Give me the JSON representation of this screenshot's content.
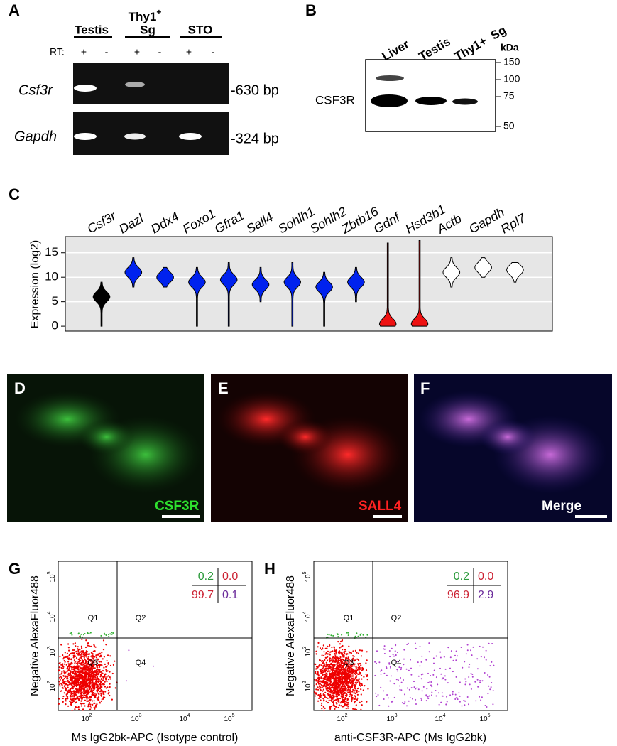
{
  "panel_a": {
    "label": "A",
    "headers": [
      "Testis",
      "Thy1",
      "Sg",
      "STO"
    ],
    "header_sup": "+",
    "rt_label": "RT:",
    "rt_marks": [
      "+",
      "-",
      "+",
      "-",
      "+",
      "-"
    ],
    "genes": [
      "Csf3r",
      "Gapdh"
    ],
    "sizes": [
      "-630 bp",
      "-324 bp"
    ]
  },
  "panel_b": {
    "label": "B",
    "lanes": [
      "Liver",
      "Testis",
      "Thy1+  Sg"
    ],
    "unit": "kDa",
    "markers": [
      "150",
      "100",
      "75",
      "50"
    ],
    "protein": "CSF3R"
  },
  "panel_c": {
    "label": "C",
    "y_label": "Expression (log2)",
    "ylim": [
      -1,
      18.3
    ],
    "yticks": [
      0,
      5,
      10,
      15
    ],
    "genes": [
      {
        "name": "Csf3r",
        "color": "#000000",
        "median": 6,
        "min": 0,
        "max": 9
      },
      {
        "name": "Dazl",
        "color": "#0022ee",
        "median": 11,
        "min": 8,
        "max": 14
      },
      {
        "name": "Ddx4",
        "color": "#0022ee",
        "median": 10,
        "min": 8,
        "max": 12
      },
      {
        "name": "Foxo1",
        "color": "#0022ee",
        "median": 9,
        "min": 0,
        "max": 12
      },
      {
        "name": "Gfra1",
        "color": "#0022ee",
        "median": 9.5,
        "min": 0,
        "max": 13
      },
      {
        "name": "Sall4",
        "color": "#0022ee",
        "median": 8.5,
        "min": 5,
        "max": 12
      },
      {
        "name": "Sohlh1",
        "color": "#0022ee",
        "median": 9,
        "min": 0,
        "max": 13
      },
      {
        "name": "Sohlh2",
        "color": "#0022ee",
        "median": 8,
        "min": 0,
        "max": 11
      },
      {
        "name": "Zbtb16",
        "color": "#0022ee",
        "median": 9,
        "min": 5,
        "max": 12
      },
      {
        "name": "Gdnf",
        "color": "#ee1111",
        "median": 0.5,
        "min": 0,
        "max": 17
      },
      {
        "name": "Hsd3b1",
        "color": "#ee1111",
        "median": 0.5,
        "min": 0,
        "max": 17.5
      },
      {
        "name": "Actb",
        "color": "#ffffff",
        "median": 11,
        "min": 8,
        "max": 14
      },
      {
        "name": "Gapdh",
        "color": "#ffffff",
        "median": 12,
        "min": 10,
        "max": 14
      },
      {
        "name": "Rpl7",
        "color": "#ffffff",
        "median": 11.5,
        "min": 9,
        "max": 13
      }
    ]
  },
  "panel_d": {
    "label": "D",
    "stain": "CSF3R"
  },
  "panel_e": {
    "label": "E",
    "stain": "SALL4"
  },
  "panel_f": {
    "label": "F",
    "stain": "Merge"
  },
  "panel_g": {
    "label": "G",
    "x_label": "Ms IgG2bk-APC (Isotype control)",
    "y_label": "Negative AlexaFluor488",
    "quadrants": [
      "Q1",
      "Q2",
      "Q3",
      "Q4"
    ],
    "percent": [
      "0.2",
      "0.0",
      "99.7",
      "0.1"
    ],
    "ticks": [
      {
        "base": "10",
        "exp": "2"
      },
      {
        "base": "10",
        "exp": "3"
      },
      {
        "base": "10",
        "exp": "4"
      },
      {
        "base": "10",
        "exp": "5"
      }
    ]
  },
  "panel_h": {
    "label": "H",
    "x_label": "anti-CSF3R-APC (Ms IgG2bk)",
    "y_label": "Negative AlexaFluor488",
    "quadrants": [
      "Q1",
      "Q2",
      "Q3",
      "Q4"
    ],
    "percent": [
      "0.2",
      "0.0",
      "96.9",
      "2.9"
    ],
    "ticks": [
      {
        "base": "10",
        "exp": "2"
      },
      {
        "base": "10",
        "exp": "3"
      },
      {
        "base": "10",
        "exp": "4"
      },
      {
        "base": "10",
        "exp": "5"
      }
    ]
  }
}
